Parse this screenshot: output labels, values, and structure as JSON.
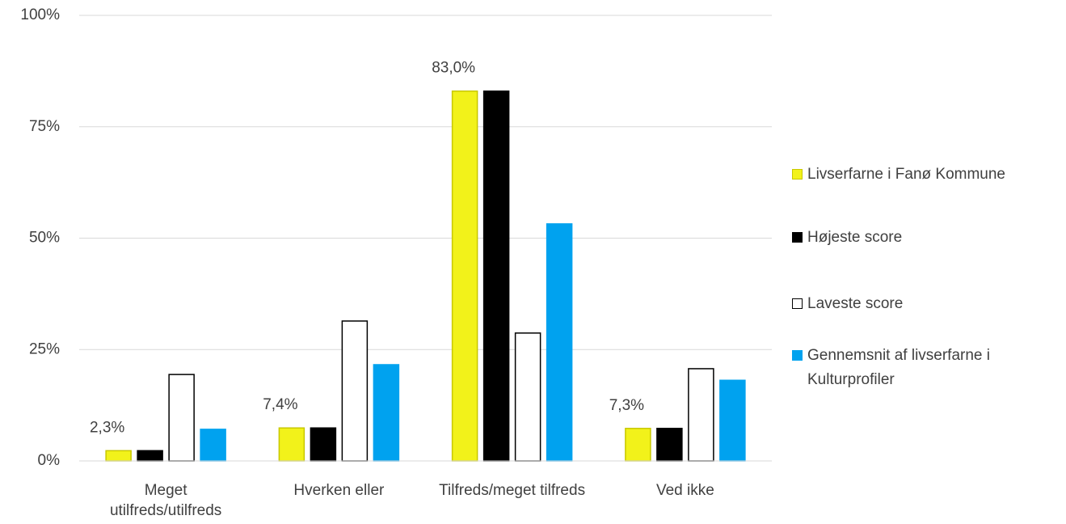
{
  "chart_data": {
    "type": "bar",
    "categories": [
      "Meget utilfreds/utilfreds",
      "Hverken eller",
      "Tilfreds/meget tilfreds",
      "Ved ikke"
    ],
    "series": [
      {
        "name": "Livserfarne i Fanø Kommune",
        "color": "#f2f21a",
        "values": [
          2.3,
          7.4,
          83.0,
          7.3
        ],
        "value_labels": [
          "2,3%",
          "7,4%",
          "83,0%",
          "7,3%"
        ]
      },
      {
        "name": "Højeste score",
        "color": "#000000",
        "values": [
          2.3,
          7.4,
          83.0,
          7.3
        ]
      },
      {
        "name": "Laveste score",
        "color": "#ffffff",
        "values": [
          19.4,
          31.4,
          28.7,
          20.7
        ]
      },
      {
        "name": "Gennemsnit af livserfarne i Kulturprofiler",
        "color": "#00a2ef",
        "values": [
          7.1,
          21.6,
          53.2,
          18.1
        ]
      }
    ],
    "ylim": [
      0,
      100
    ],
    "yticks": [
      {
        "value": 0,
        "label": "0%"
      },
      {
        "value": 25,
        "label": "25%"
      },
      {
        "value": 50,
        "label": "50%"
      },
      {
        "value": 75,
        "label": "75%"
      },
      {
        "value": 100,
        "label": "100%"
      }
    ],
    "grid": true,
    "legend": "right"
  }
}
